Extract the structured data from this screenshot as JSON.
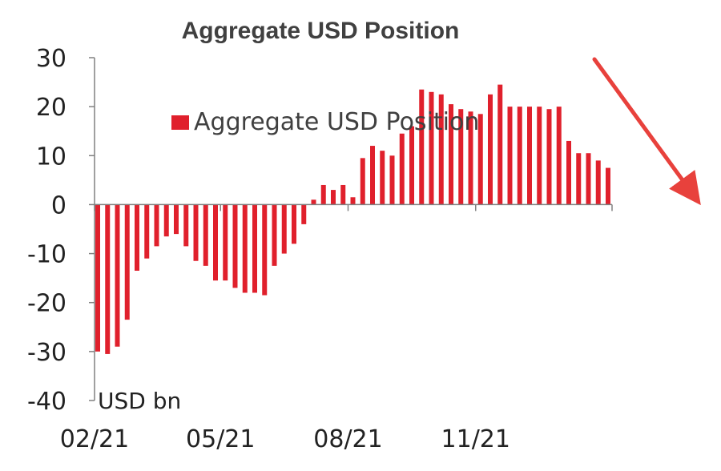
{
  "chart_data": {
    "type": "bar",
    "title": "Aggregate USD Position",
    "ylabel": "USD bn",
    "ylim": [
      -40,
      30
    ],
    "yticks": [
      30,
      20,
      10,
      0,
      -10,
      -20,
      -30,
      -40
    ],
    "xticks": [
      "02/21",
      "05/21",
      "08/21",
      "11/21"
    ],
    "xtick_bar_index": [
      0,
      13,
      26,
      39
    ],
    "legend": {
      "label": "Aggregate USD Position",
      "position": "top-center"
    },
    "grid": false,
    "bar_color": "#e0202c",
    "arrow_color": "#e8413c",
    "series": [
      {
        "name": "Aggregate USD Position",
        "values": [
          -30,
          -30.5,
          -29,
          -23.5,
          -13.5,
          -11,
          -8.5,
          -6.5,
          -6,
          -8.5,
          -11.5,
          -12.5,
          -15.5,
          -15.5,
          -17,
          -18,
          -18,
          -18.5,
          -12.5,
          -10,
          -8,
          -4,
          1,
          4,
          3,
          4,
          1.5,
          9.5,
          12,
          11,
          10,
          14.5,
          16,
          23.5,
          23,
          22.5,
          20.5,
          19.5,
          19,
          18.5,
          22.5,
          24.5,
          20,
          20,
          20,
          20,
          19.5,
          20,
          13,
          10.5,
          10.5,
          9,
          7.5
        ]
      }
    ]
  }
}
